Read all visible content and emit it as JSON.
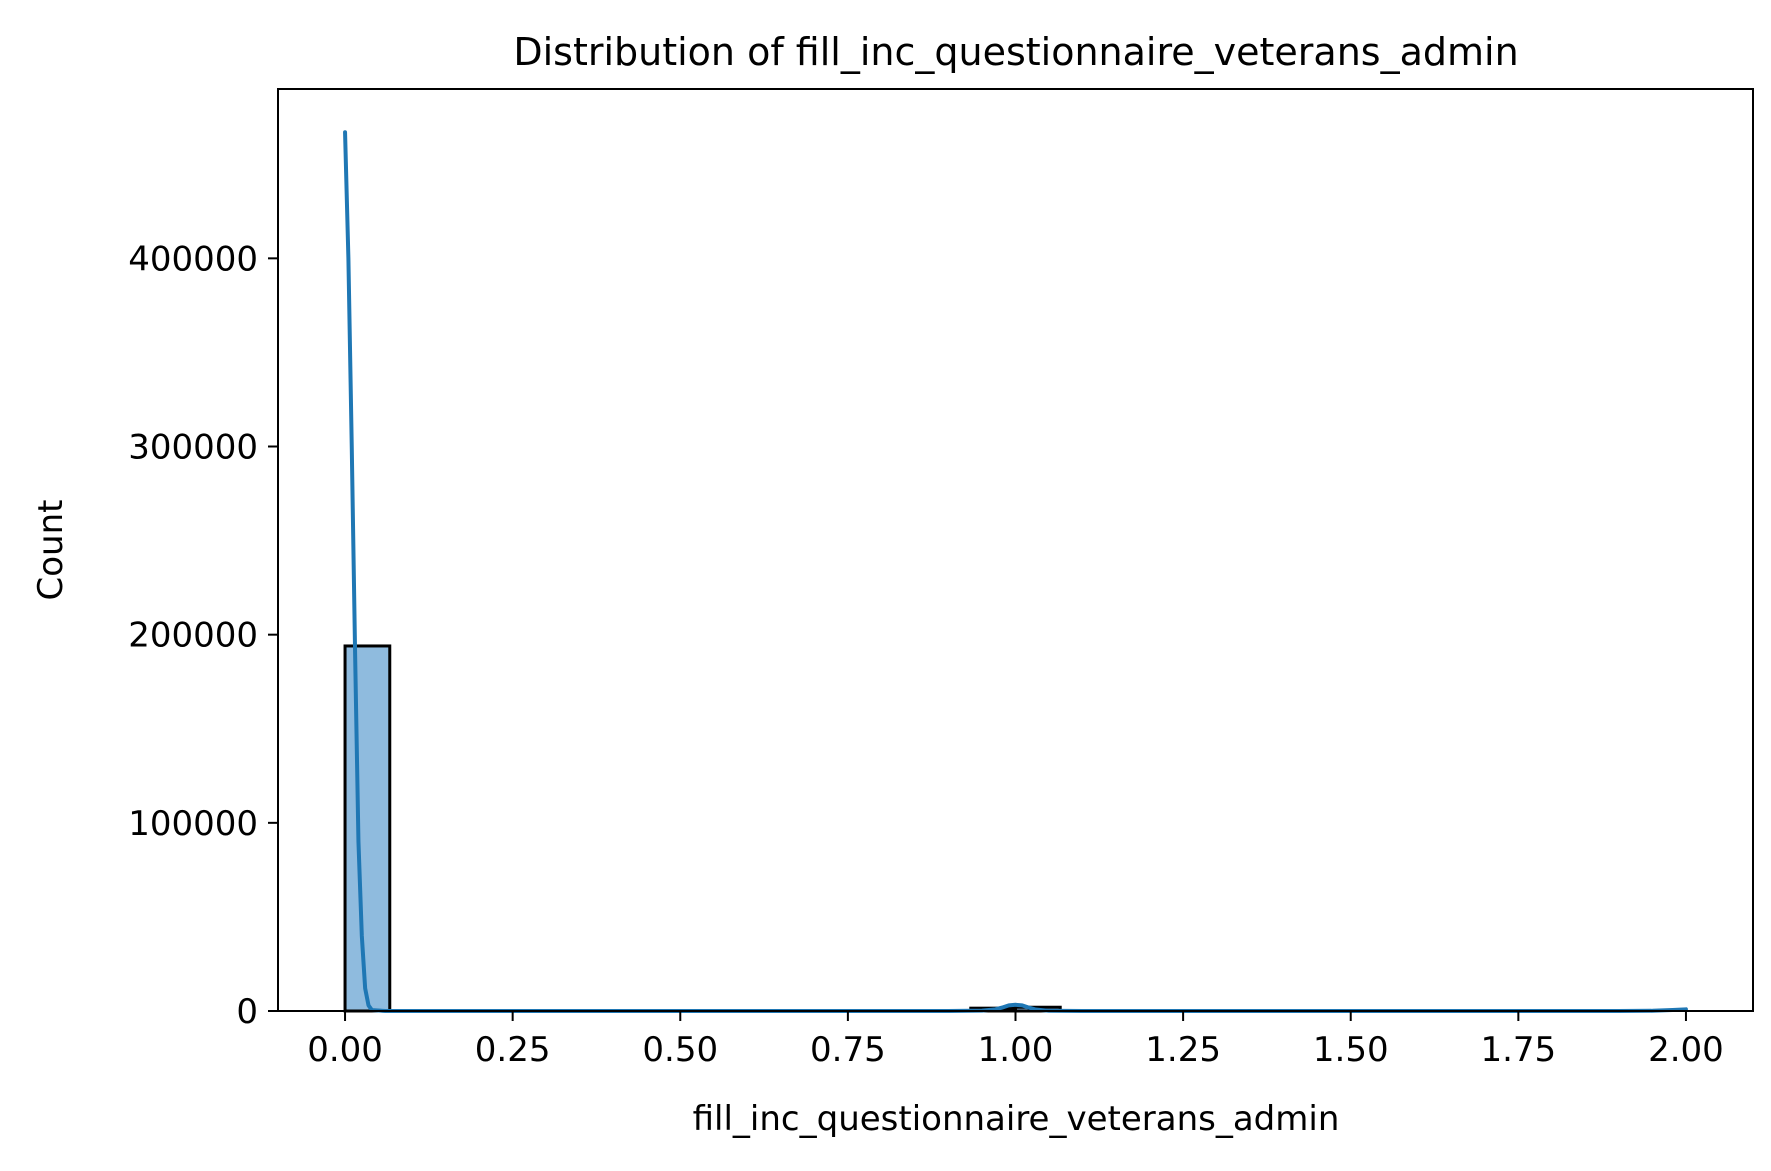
{
  "chart_data": {
    "type": "bar",
    "title": "Distribution of fill_inc_questionnaire_veterans_admin",
    "xlabel": "fill_inc_questionnaire_veterans_admin",
    "ylabel": "Count",
    "xlim": [
      -0.1,
      2.1
    ],
    "ylim": [
      0,
      490000
    ],
    "xticks": [
      0.0,
      0.25,
      0.5,
      0.75,
      1.0,
      1.25,
      1.5,
      1.75,
      2.0
    ],
    "xtick_labels": [
      "0.00",
      "0.25",
      "0.50",
      "0.75",
      "1.00",
      "1.25",
      "1.50",
      "1.75",
      "2.00"
    ],
    "yticks": [
      0,
      100000,
      200000,
      300000,
      400000
    ],
    "ytick_labels": [
      "0",
      "100000",
      "200000",
      "300000",
      "400000"
    ],
    "grid": false,
    "bars": [
      {
        "x0": 0.0,
        "x1": 0.0667,
        "value": 194000
      },
      {
        "x0": 0.9333,
        "x1": 1.0,
        "value": 1500
      },
      {
        "x0": 1.0,
        "x1": 1.0667,
        "value": 2000
      }
    ],
    "kde": {
      "x": [
        0.0,
        0.005,
        0.01,
        0.015,
        0.02,
        0.025,
        0.03,
        0.035,
        0.04,
        0.06,
        0.1,
        0.2,
        0.4,
        0.6,
        0.8,
        0.9,
        0.95,
        0.97,
        0.98,
        0.99,
        1.0,
        1.01,
        1.02,
        1.03,
        1.05,
        1.1,
        1.3,
        1.5,
        1.7,
        1.9,
        1.95,
        1.98,
        2.0
      ],
      "y": [
        467000,
        400000,
        300000,
        190000,
        90000,
        40000,
        12000,
        3000,
        500,
        0,
        0,
        0,
        0,
        0,
        0,
        0,
        200,
        900,
        1800,
        3000,
        3300,
        3000,
        1800,
        800,
        100,
        0,
        0,
        0,
        0,
        0,
        100,
        500,
        900
      ]
    },
    "colors": {
      "bar_fill": "#8fbbde",
      "bar_edge": "#000000",
      "kde_line": "#1f77b4",
      "axes": "#000000"
    }
  }
}
